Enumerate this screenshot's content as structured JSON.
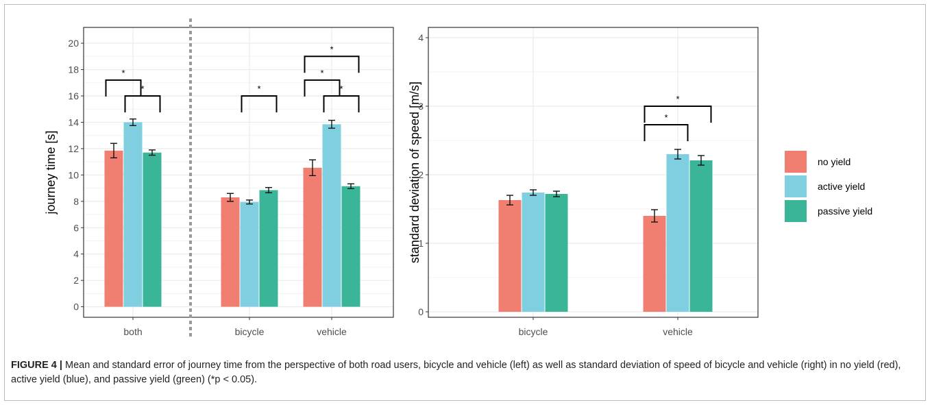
{
  "chart_data": [
    {
      "type": "bar",
      "panel": "left",
      "ylabel": "journey time [s]",
      "xlabel": "",
      "ylim": [
        -0.8,
        21.2
      ],
      "yticks": [
        0,
        2,
        4,
        6,
        8,
        10,
        12,
        14,
        16,
        18,
        20
      ],
      "categories": [
        "both",
        "bicycle",
        "vehicle"
      ],
      "separator_after_category": 0,
      "series": [
        {
          "name": "no yield",
          "values": [
            11.85,
            8.3,
            10.55
          ],
          "se": [
            0.55,
            0.3,
            0.6
          ]
        },
        {
          "name": "active yield",
          "values": [
            14.0,
            7.95,
            13.85
          ],
          "se": [
            0.25,
            0.15,
            0.3
          ]
        },
        {
          "name": "passive yield",
          "values": [
            11.7,
            8.85,
            9.15
          ],
          "se": [
            0.2,
            0.2,
            0.18
          ]
        }
      ],
      "significance": [
        {
          "category": 0,
          "from": 0,
          "to": 1,
          "y": 17.2,
          "label": "*"
        },
        {
          "category": 0,
          "from": 1,
          "to": 2,
          "y": 16.0,
          "label": "*"
        },
        {
          "category": 1,
          "from": 1,
          "to": 2,
          "y": 16.0,
          "label": "*"
        },
        {
          "category": 2,
          "from": 0,
          "to": 2,
          "y": 19.0,
          "label": "*"
        },
        {
          "category": 2,
          "from": 0,
          "to": 1,
          "y": 17.2,
          "label": "*"
        },
        {
          "category": 2,
          "from": 1,
          "to": 2,
          "y": 16.0,
          "label": "*"
        }
      ],
      "grid": true
    },
    {
      "type": "bar",
      "panel": "right",
      "ylabel": "standard deviation of speed [m/s]",
      "xlabel": "",
      "ylim": [
        -0.08,
        4.15
      ],
      "yticks": [
        0,
        1,
        2,
        3,
        4
      ],
      "categories": [
        "bicycle",
        "vehicle"
      ],
      "series": [
        {
          "name": "no yield",
          "values": [
            1.63,
            1.4
          ],
          "se": [
            0.07,
            0.09
          ]
        },
        {
          "name": "active yield",
          "values": [
            1.74,
            2.3
          ],
          "se": [
            0.04,
            0.07
          ]
        },
        {
          "name": "passive yield",
          "values": [
            1.72,
            2.21
          ],
          "se": [
            0.04,
            0.07
          ]
        }
      ],
      "significance": [
        {
          "category": 1,
          "from": 0,
          "to": 2,
          "y": 3.0,
          "label": "*"
        },
        {
          "category": 1,
          "from": 0,
          "to": 1,
          "y": 2.73,
          "label": "*"
        }
      ],
      "grid": true
    }
  ],
  "legend": {
    "placement": "right",
    "items": [
      {
        "label": "no yield",
        "color": "#f07f71"
      },
      {
        "label": "active yield",
        "color": "#7fcfe1"
      },
      {
        "label": "passive yield",
        "color": "#3bb598"
      }
    ]
  },
  "colors": {
    "series": [
      "#f07f71",
      "#7fcfe1",
      "#3bb598"
    ],
    "grid": "#ebebeb",
    "separator": "#999999"
  },
  "caption": {
    "label": "FIGURE 4 |",
    "text": "Mean and standard error of journey time from the perspective of both road users, bicycle and vehicle (left) as well as standard deviation of speed of bicycle and vehicle (right) in no yield (red), active yield (blue), and passive yield (green) (*p < 0.05)."
  }
}
